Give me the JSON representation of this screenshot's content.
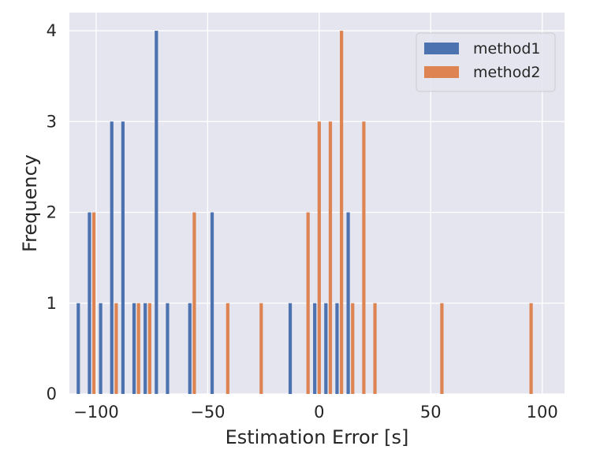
{
  "chart_data": {
    "type": "bar",
    "title": "",
    "xlabel": "Estimation Error [s]",
    "ylabel": "Frequency",
    "xlim": [
      -112,
      110
    ],
    "ylim": [
      0,
      4.2
    ],
    "xticks": [
      -100,
      -50,
      0,
      50,
      100
    ],
    "xtick_labels": [
      "−100",
      "−50",
      "0",
      "50",
      "100"
    ],
    "yticks": [
      0,
      1,
      2,
      3,
      4
    ],
    "ytick_labels": [
      "0",
      "1",
      "2",
      "3",
      "4"
    ],
    "grid": true,
    "legend_position": "top-right",
    "background_color": "#e5e5ef",
    "grid_color": "#ffffff",
    "series": [
      {
        "name": "method1",
        "color": "#4c72b0",
        "points": [
          {
            "x": -108,
            "y": 1
          },
          {
            "x": -103,
            "y": 2
          },
          {
            "x": -98,
            "y": 1
          },
          {
            "x": -93,
            "y": 3
          },
          {
            "x": -88,
            "y": 3
          },
          {
            "x": -83,
            "y": 1
          },
          {
            "x": -78,
            "y": 1
          },
          {
            "x": -73,
            "y": 4
          },
          {
            "x": -68,
            "y": 1
          },
          {
            "x": -58,
            "y": 1
          },
          {
            "x": -48,
            "y": 2
          },
          {
            "x": -13,
            "y": 1
          },
          {
            "x": -2,
            "y": 1
          },
          {
            "x": 3,
            "y": 1
          },
          {
            "x": 8,
            "y": 1
          },
          {
            "x": 13,
            "y": 2
          }
        ]
      },
      {
        "name": "method2",
        "color": "#dd8452",
        "points": [
          {
            "x": -101,
            "y": 2
          },
          {
            "x": -91,
            "y": 1
          },
          {
            "x": -81,
            "y": 1
          },
          {
            "x": -76,
            "y": 1
          },
          {
            "x": -56,
            "y": 2
          },
          {
            "x": -41,
            "y": 1
          },
          {
            "x": -26,
            "y": 1
          },
          {
            "x": -5,
            "y": 2
          },
          {
            "x": 0,
            "y": 3
          },
          {
            "x": 5,
            "y": 3
          },
          {
            "x": 10,
            "y": 4
          },
          {
            "x": 15,
            "y": 1
          },
          {
            "x": 20,
            "y": 3
          },
          {
            "x": 25,
            "y": 1
          },
          {
            "x": 55,
            "y": 1
          },
          {
            "x": 95,
            "y": 1
          }
        ]
      }
    ]
  }
}
